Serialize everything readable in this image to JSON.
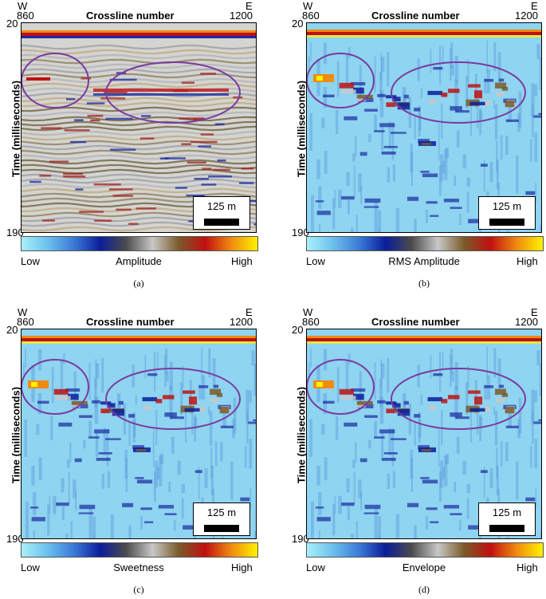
{
  "shared": {
    "west": "W",
    "east": "E",
    "crossline_start": "860",
    "crossline_end": "1200",
    "crossline_title": "Crossline number",
    "time_top": "20",
    "time_bottom": "190",
    "time_label": "Time (milliseconds)",
    "scale_label": "125 m",
    "low": "Low",
    "high": "High"
  },
  "panels": [
    {
      "attribute": "Amplitude",
      "caption": "(a)",
      "style": "amplitude"
    },
    {
      "attribute": "RMS Amplitude",
      "caption": "(b)",
      "style": "rms"
    },
    {
      "attribute": "Sweetness",
      "caption": "(c)",
      "style": "sweetness"
    },
    {
      "attribute": "Envelope",
      "caption": "(d)",
      "style": "envelope"
    }
  ],
  "colors": {
    "colorbar_gradient": [
      "#a8f0f8",
      "#6cc0ee",
      "#3a7bd6",
      "#0b1d9a",
      "#4c4c4c",
      "#c8c8c8",
      "#7a5a2a",
      "#c01010",
      "#f08a10",
      "#fff200"
    ],
    "ellipse": "#7a3aa0"
  }
}
